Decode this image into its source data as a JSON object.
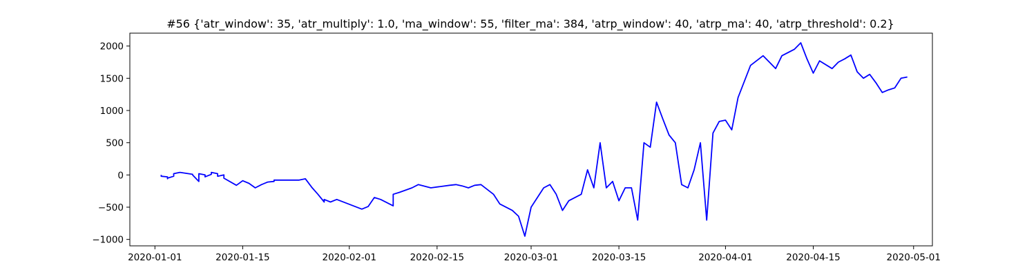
{
  "chart_data": {
    "type": "line",
    "title": "#56 {'atr_window': 35, 'atr_multiply': 1.0, 'ma_window': 55, 'filter_ma': 384, 'atrp_window': 40, 'atrp_ma': 40, 'atrp_threshold': 0.2}",
    "xlabel": "",
    "ylabel": "",
    "xlim": [
      "2019-12-28",
      "2020-05-04"
    ],
    "ylim": [
      -1100,
      2200
    ],
    "grid": false,
    "x_ticks": [
      "2020-01-01",
      "2020-01-15",
      "2020-02-01",
      "2020-02-15",
      "2020-03-01",
      "2020-03-15",
      "2020-04-01",
      "2020-04-15",
      "2020-05-01"
    ],
    "y_ticks": [
      -1000,
      -500,
      0,
      500,
      1000,
      1500,
      2000
    ],
    "series": [
      {
        "color": "#0000ff",
        "x": [
          "2020-01-02",
          "2020-01-02",
          "2020-01-03",
          "2020-01-03",
          "2020-01-03",
          "2020-01-04",
          "2020-01-04",
          "2020-01-05",
          "2020-01-07",
          "2020-01-07",
          "2020-01-08",
          "2020-01-08",
          "2020-01-09",
          "2020-01-09",
          "2020-01-10",
          "2020-01-10",
          "2020-01-11",
          "2020-01-11",
          "2020-01-12",
          "2020-01-12",
          "2020-01-14",
          "2020-01-15",
          "2020-01-16",
          "2020-01-17",
          "2020-01-18",
          "2020-01-19",
          "2020-01-20",
          "2020-01-20",
          "2020-01-24",
          "2020-01-25",
          "2020-01-26",
          "2020-01-27",
          "2020-01-28",
          "2020-01-28",
          "2020-01-29",
          "2020-01-30",
          "2020-02-03",
          "2020-02-04",
          "2020-02-05",
          "2020-02-06",
          "2020-02-08",
          "2020-02-08",
          "2020-02-09",
          "2020-02-11",
          "2020-02-12",
          "2020-02-14",
          "2020-02-17",
          "2020-02-18",
          "2020-02-19",
          "2020-02-20",
          "2020-02-21",
          "2020-02-22",
          "2020-02-24",
          "2020-02-25",
          "2020-02-27",
          "2020-02-28",
          "2020-02-29",
          "2020-03-01",
          "2020-03-02",
          "2020-03-03",
          "2020-03-04",
          "2020-03-05",
          "2020-03-06",
          "2020-03-07",
          "2020-03-09",
          "2020-03-10",
          "2020-03-11",
          "2020-03-12",
          "2020-03-13",
          "2020-03-14",
          "2020-03-15",
          "2020-03-16",
          "2020-03-17",
          "2020-03-18",
          "2020-03-19",
          "2020-03-20",
          "2020-03-21",
          "2020-03-22",
          "2020-03-23",
          "2020-03-24",
          "2020-03-25",
          "2020-03-26",
          "2020-03-27",
          "2020-03-28",
          "2020-03-29",
          "2020-03-30",
          "2020-03-31",
          "2020-04-01",
          "2020-04-02",
          "2020-04-03",
          "2020-04-05",
          "2020-04-07",
          "2020-04-08",
          "2020-04-09",
          "2020-04-10",
          "2020-04-12",
          "2020-04-13",
          "2020-04-14",
          "2020-04-15",
          "2020-04-16",
          "2020-04-18",
          "2020-04-19",
          "2020-04-20",
          "2020-04-21",
          "2020-04-22",
          "2020-04-23",
          "2020-04-24",
          "2020-04-25",
          "2020-04-26",
          "2020-04-27",
          "2020-04-28",
          "2020-04-29",
          "2020-04-30"
        ],
        "y": [
          0,
          -20,
          -30,
          -60,
          -50,
          -20,
          20,
          40,
          10,
          0,
          -100,
          20,
          0,
          -30,
          10,
          40,
          20,
          -20,
          0,
          -50,
          -160,
          -90,
          -130,
          -200,
          -150,
          -110,
          -100,
          -80,
          -80,
          -60,
          -190,
          -300,
          -420,
          -380,
          -420,
          -380,
          -530,
          -490,
          -350,
          -380,
          -480,
          -300,
          -270,
          -200,
          -150,
          -200,
          -160,
          -150,
          -170,
          -200,
          -160,
          -150,
          -300,
          -450,
          -550,
          -640,
          -950,
          -500,
          -350,
          -200,
          -150,
          -300,
          -550,
          -400,
          -300,
          80,
          -200,
          500,
          -200,
          -100,
          -400,
          -200,
          -200,
          -700,
          500,
          430,
          1130,
          870,
          620,
          500,
          -150,
          -200,
          80,
          500,
          -700,
          650,
          830,
          850,
          700,
          1200,
          1700,
          1850,
          1750,
          1650,
          1850,
          1950,
          2050,
          1800,
          1580,
          1770,
          1650,
          1750,
          1800,
          1860,
          1600,
          1500,
          1560,
          1430,
          1280,
          1320,
          1350,
          1500,
          1520
        ]
      }
    ]
  }
}
